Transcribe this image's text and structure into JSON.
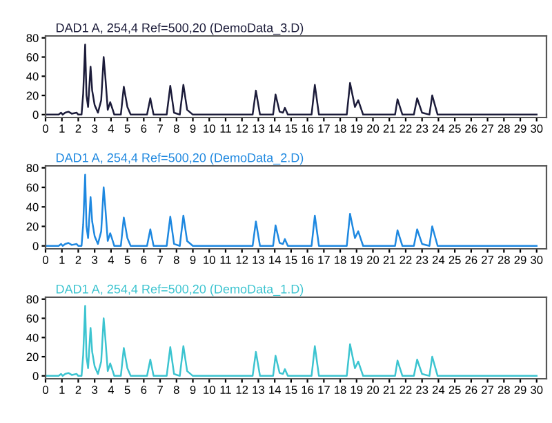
{
  "chart_data": [
    {
      "type": "line",
      "title": "DAD1 A, 254,4 Ref=500,20 (DemoData_3.D)",
      "xlim": [
        0,
        30.6
      ],
      "xticks": [
        0,
        1,
        2,
        3,
        4,
        5,
        6,
        7,
        8,
        9,
        10,
        11,
        12,
        13,
        14,
        15,
        16,
        17,
        18,
        19,
        20,
        21,
        22,
        23,
        24,
        25,
        26,
        27,
        28,
        29,
        30
      ],
      "ylim": [
        -3,
        82
      ],
      "yticks": [
        0,
        20,
        40,
        60,
        80
      ],
      "grid": false,
      "legend": false,
      "series": [
        {
          "color": "#1c1c3a",
          "x": [
            0,
            0.8,
            0.95,
            1.05,
            1.2,
            1.4,
            1.6,
            1.9,
            2.0,
            2.2,
            2.3,
            2.42,
            2.5,
            2.6,
            2.75,
            2.85,
            3.0,
            3.2,
            3.4,
            3.55,
            3.65,
            3.8,
            3.95,
            4.05,
            4.2,
            4.6,
            4.78,
            5.0,
            5.2,
            6.2,
            6.4,
            6.6,
            7.4,
            7.62,
            7.85,
            8.2,
            8.42,
            8.65,
            9.0,
            12.65,
            12.85,
            13.1,
            13.9,
            14.05,
            14.3,
            14.5,
            14.62,
            14.8,
            16.25,
            16.45,
            16.7,
            18.4,
            18.6,
            18.9,
            19.1,
            19.4,
            21.35,
            21.5,
            21.8,
            22.5,
            22.7,
            23.0,
            23.45,
            23.62,
            23.95,
            29.2,
            30
          ],
          "values": [
            0,
            0,
            2,
            0,
            2,
            3,
            1,
            2,
            0,
            0,
            22,
            73,
            20,
            8,
            50,
            25,
            10,
            2,
            15,
            60,
            40,
            5,
            13,
            8,
            0,
            0,
            29,
            8,
            0,
            0,
            17,
            0,
            0,
            30,
            2,
            0,
            31,
            5,
            0,
            0,
            25,
            0,
            0,
            21,
            3,
            2,
            7,
            0,
            0,
            31,
            0,
            0,
            33,
            8,
            15,
            0,
            0,
            16,
            0,
            0,
            17,
            2,
            0,
            20,
            0,
            0,
            0
          ]
        }
      ]
    },
    {
      "type": "line",
      "title": "DAD1 A, 254,4 Ref=500,20 (DemoData_2.D)",
      "xlim": [
        0,
        30.6
      ],
      "xticks": [
        0,
        1,
        2,
        3,
        4,
        5,
        6,
        7,
        8,
        9,
        10,
        11,
        12,
        13,
        14,
        15,
        16,
        17,
        18,
        19,
        20,
        21,
        22,
        23,
        24,
        25,
        26,
        27,
        28,
        29,
        30
      ],
      "ylim": [
        -3,
        82
      ],
      "yticks": [
        0,
        20,
        40,
        60,
        80
      ],
      "grid": false,
      "legend": false,
      "series": [
        {
          "color": "#1e88e0",
          "x": [
            0,
            0.8,
            0.95,
            1.05,
            1.2,
            1.4,
            1.6,
            1.9,
            2.0,
            2.2,
            2.3,
            2.42,
            2.5,
            2.6,
            2.75,
            2.85,
            3.0,
            3.2,
            3.4,
            3.55,
            3.65,
            3.8,
            3.95,
            4.05,
            4.2,
            4.6,
            4.78,
            5.0,
            5.2,
            6.2,
            6.4,
            6.6,
            7.4,
            7.62,
            7.85,
            8.2,
            8.42,
            8.65,
            9.0,
            12.65,
            12.85,
            13.1,
            13.9,
            14.05,
            14.3,
            14.5,
            14.62,
            14.8,
            16.25,
            16.45,
            16.7,
            18.4,
            18.6,
            18.9,
            19.1,
            19.4,
            21.35,
            21.5,
            21.8,
            22.5,
            22.7,
            23.0,
            23.45,
            23.62,
            23.95,
            29.2,
            30
          ],
          "values": [
            0,
            0,
            2,
            0,
            2,
            3,
            1,
            2,
            0,
            0,
            22,
            73,
            20,
            8,
            50,
            25,
            10,
            2,
            15,
            60,
            40,
            5,
            13,
            8,
            0,
            0,
            29,
            8,
            0,
            0,
            17,
            0,
            0,
            30,
            2,
            0,
            31,
            5,
            0,
            0,
            25,
            0,
            0,
            21,
            3,
            2,
            7,
            0,
            0,
            31,
            0,
            0,
            33,
            8,
            15,
            0,
            0,
            16,
            0,
            0,
            17,
            2,
            0,
            20,
            0,
            0,
            0
          ]
        }
      ]
    },
    {
      "type": "line",
      "title": "DAD1 A, 254,4 Ref=500,20 (DemoData_1.D)",
      "xlim": [
        0,
        30.6
      ],
      "xticks": [
        0,
        1,
        2,
        3,
        4,
        5,
        6,
        7,
        8,
        9,
        10,
        11,
        12,
        13,
        14,
        15,
        16,
        17,
        18,
        19,
        20,
        21,
        22,
        23,
        24,
        25,
        26,
        27,
        28,
        29,
        30
      ],
      "ylim": [
        -3,
        82
      ],
      "yticks": [
        0,
        20,
        40,
        60,
        80
      ],
      "grid": false,
      "legend": false,
      "series": [
        {
          "color": "#3cc4d0",
          "x": [
            0,
            0.8,
            0.95,
            1.05,
            1.2,
            1.4,
            1.6,
            1.9,
            2.0,
            2.2,
            2.3,
            2.42,
            2.5,
            2.6,
            2.75,
            2.85,
            3.0,
            3.2,
            3.4,
            3.55,
            3.65,
            3.8,
            3.95,
            4.05,
            4.2,
            4.6,
            4.78,
            5.0,
            5.2,
            6.2,
            6.4,
            6.6,
            7.4,
            7.62,
            7.85,
            8.2,
            8.42,
            8.65,
            9.0,
            12.65,
            12.85,
            13.1,
            13.9,
            14.05,
            14.3,
            14.5,
            14.62,
            14.8,
            16.25,
            16.45,
            16.7,
            18.4,
            18.6,
            18.9,
            19.1,
            19.4,
            21.35,
            21.5,
            21.8,
            22.5,
            22.7,
            23.0,
            23.45,
            23.62,
            23.95,
            29.2,
            30
          ],
          "values": [
            0,
            0,
            2,
            0,
            2,
            3,
            1,
            2,
            0,
            0,
            22,
            73,
            20,
            8,
            50,
            25,
            10,
            2,
            15,
            60,
            40,
            5,
            13,
            8,
            0,
            0,
            29,
            8,
            0,
            0,
            17,
            0,
            0,
            30,
            2,
            0,
            31,
            5,
            0,
            0,
            25,
            0,
            0,
            21,
            3,
            2,
            7,
            0,
            0,
            31,
            0,
            0,
            33,
            8,
            15,
            0,
            0,
            16,
            0,
            0,
            17,
            2,
            0,
            20,
            0,
            0,
            0
          ]
        }
      ]
    }
  ]
}
